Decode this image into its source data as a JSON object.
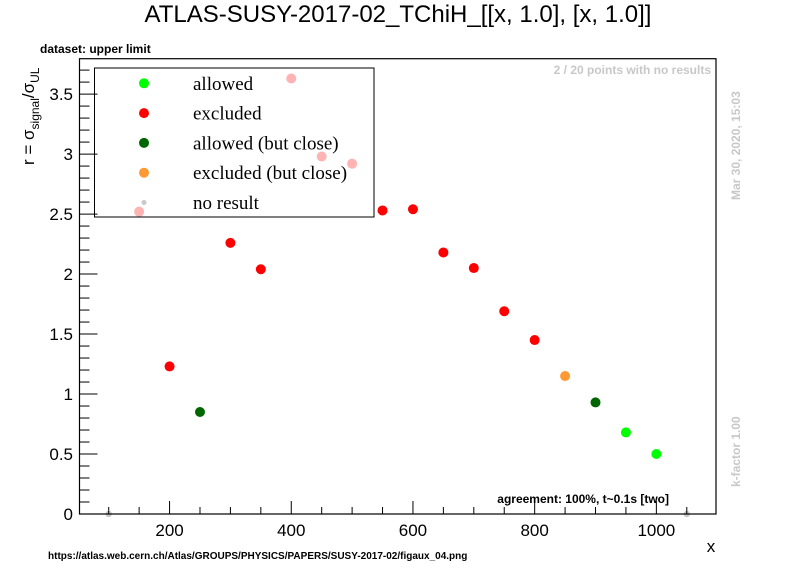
{
  "chart_data": {
    "type": "scatter",
    "title": "ATLAS-SUSY-2017-02_TChiH_[[x, 1.0], [x, 1.0]]",
    "subtitle": "dataset: upper limit",
    "xlabel": "x",
    "ylabel": {
      "main": "r = σ",
      "sub1": "signal",
      "mid": "/σ",
      "sub2": "UL"
    },
    "xlim": [
      52,
      1098
    ],
    "ylim": [
      0,
      3.795
    ],
    "x_ticks": [
      200,
      400,
      600,
      800,
      1000
    ],
    "x_tick_labels": [
      "200",
      "400",
      "600",
      "800",
      "1000"
    ],
    "y_ticks": [
      0,
      0.5,
      1,
      1.5,
      2,
      2.5,
      3,
      3.5
    ],
    "y_tick_labels": [
      "0",
      "0.5",
      "1",
      "1.5",
      "2",
      "2.5",
      "3",
      "3.5"
    ],
    "grid": false,
    "legend_position": "top-left",
    "legend": [
      {
        "label": "allowed",
        "color": "#00ff00",
        "size": "large"
      },
      {
        "label": "excluded",
        "color": "#ff0000",
        "size": "large"
      },
      {
        "label": "allowed (but close)",
        "color": "#006600",
        "size": "large"
      },
      {
        "label": "excluded (but close)",
        "color": "#ff9933",
        "size": "large"
      },
      {
        "label": "no result",
        "color": "#c8c8c8",
        "size": "small"
      }
    ],
    "series": [
      {
        "name": "allowed",
        "color": "#00ff00",
        "points": [
          [
            950,
            0.68
          ],
          [
            1000,
            0.5
          ]
        ]
      },
      {
        "name": "excluded",
        "color": "#ff0000",
        "points": [
          [
            150,
            2.52
          ],
          [
            200,
            1.23
          ],
          [
            300,
            2.26
          ],
          [
            350,
            2.04
          ],
          [
            400,
            3.63
          ],
          [
            450,
            2.98
          ],
          [
            500,
            2.92
          ],
          [
            550,
            2.53
          ],
          [
            600,
            2.54
          ],
          [
            650,
            2.18
          ],
          [
            700,
            2.05
          ],
          [
            750,
            1.69
          ],
          [
            800,
            1.45
          ]
        ]
      },
      {
        "name": "allowed (but close)",
        "color": "#006600",
        "points": [
          [
            250,
            0.85
          ],
          [
            900,
            0.93
          ]
        ]
      },
      {
        "name": "excluded (but close)",
        "color": "#ff9933",
        "points": [
          [
            850,
            1.15
          ]
        ]
      },
      {
        "name": "no result",
        "color": "#c8c8c8",
        "points": [
          [
            100,
            0
          ],
          [
            1050,
            0
          ]
        ]
      }
    ],
    "annotations": {
      "no_results": "2 / 20 points with no results",
      "timestamp": "Mar 30, 2020, 15:03",
      "kfactor": "k-factor 1.00",
      "agreement": "agreement: 100%, t~0.1s [two]",
      "url": "https://atlas.web.cern.ch/Atlas/GROUPS/PHYSICS/PAPERS/SUSY-2017-02/figaux_04.png"
    }
  }
}
